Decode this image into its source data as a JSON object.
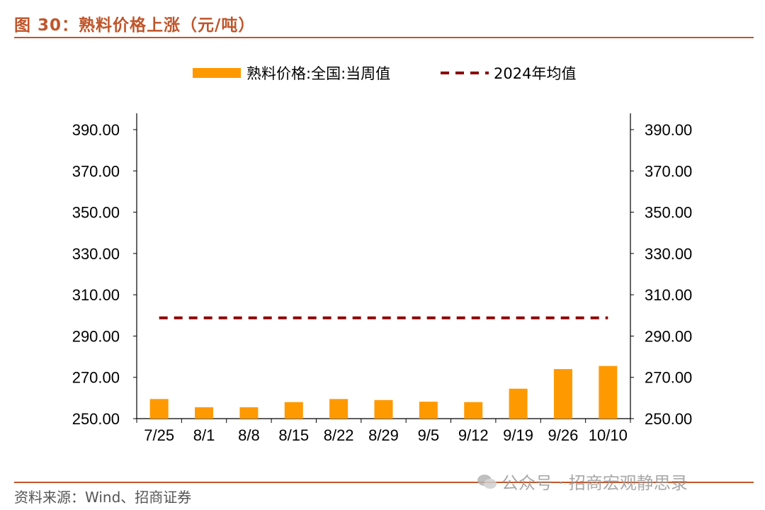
{
  "figure": {
    "title": "图 30：熟料价格上涨（元/吨）",
    "source": "资料来源：Wind、招商证券",
    "watermark": "公众号 · 招商宏观静思录",
    "accent_color": "#c0552a"
  },
  "chart_data": {
    "type": "bar",
    "categories": [
      "7/25",
      "8/1",
      "8/8",
      "8/15",
      "8/22",
      "8/29",
      "9/5",
      "9/12",
      "9/19",
      "9/26",
      "10/10"
    ],
    "series": [
      {
        "name": "熟料价格:全国:当周值",
        "type": "bar",
        "color": "#ff9900",
        "values": [
          259.5,
          255.5,
          255.5,
          258.0,
          259.5,
          259.0,
          258.2,
          258.0,
          264.5,
          274.0,
          275.5
        ]
      },
      {
        "name": "2024年均值",
        "type": "line",
        "style": "dashed",
        "color": "#8b0000",
        "values": [
          298.8,
          298.8,
          298.8,
          298.8,
          298.8,
          298.8,
          298.8,
          298.8,
          298.8,
          298.8,
          298.8
        ]
      }
    ],
    "ylim": [
      250,
      390
    ],
    "yticks": [
      "250.00",
      "270.00",
      "290.00",
      "310.00",
      "330.00",
      "350.00",
      "370.00",
      "390.00"
    ],
    "ytick_values": [
      250,
      270,
      290,
      310,
      330,
      350,
      370,
      390
    ],
    "y_axis_sides": "both",
    "legend_position": "top-center",
    "grid": false
  }
}
